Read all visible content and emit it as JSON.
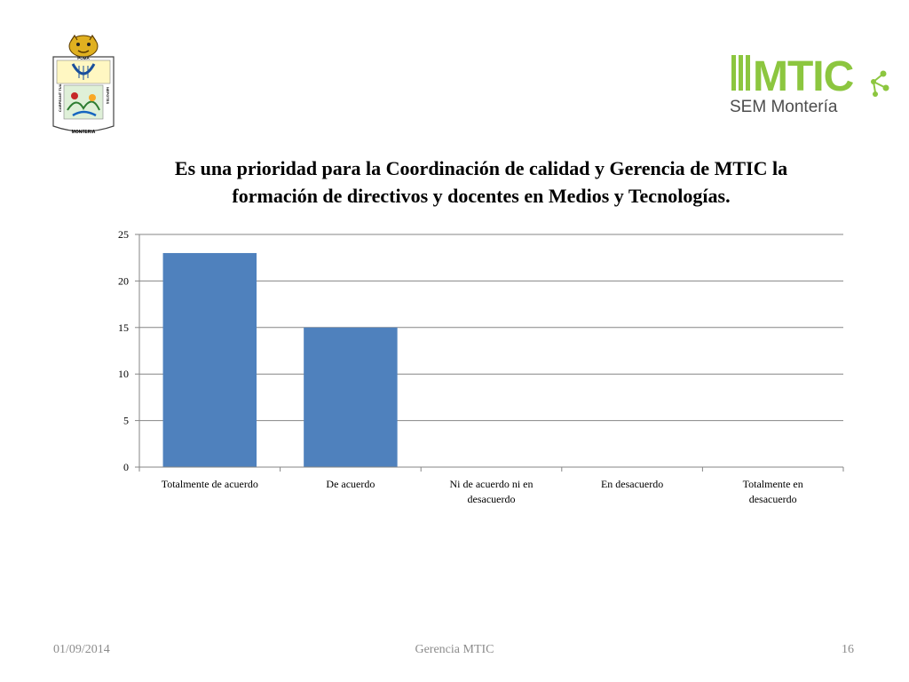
{
  "slide": {
    "logo_left": {
      "name": "monteria-coat-of-arms",
      "text_top": "POMA",
      "text_left": "CARPEANT TUA",
      "text_right": "NEPOTES",
      "text_bottom": "MONTERIA"
    },
    "logo_right": {
      "name": "mtic-sem-monteria-logo",
      "brand": "MTIC",
      "subtitle": "SEM Montería",
      "colors": {
        "brand_green": "#8cc63f",
        "text_gray": "#4d4d4d"
      }
    },
    "footer": {
      "date": "01/09/2014",
      "center": "Gerencia MTIC",
      "page": "16"
    }
  },
  "chart_data": {
    "type": "bar",
    "title": "Es una prioridad  para la Coordinación de calidad  y Gerencia de MTIC la formación de directivos y docentes en Medios y Tecnologías.",
    "categories": [
      [
        "Totalmente de acuerdo"
      ],
      [
        "De acuerdo"
      ],
      [
        "Ni de acuerdo ni en",
        "desacuerdo"
      ],
      [
        "En desacuerdo"
      ],
      [
        "Totalmente en",
        "desacuerdo"
      ]
    ],
    "values": [
      23,
      15,
      0,
      0,
      0
    ],
    "ylim": [
      0,
      25
    ],
    "yticks": [
      0,
      5,
      10,
      15,
      20,
      25
    ],
    "grid": true,
    "legend": "none",
    "colors": {
      "bar": "#4f81bd",
      "grid": "#868686",
      "axis": "#868686"
    }
  }
}
